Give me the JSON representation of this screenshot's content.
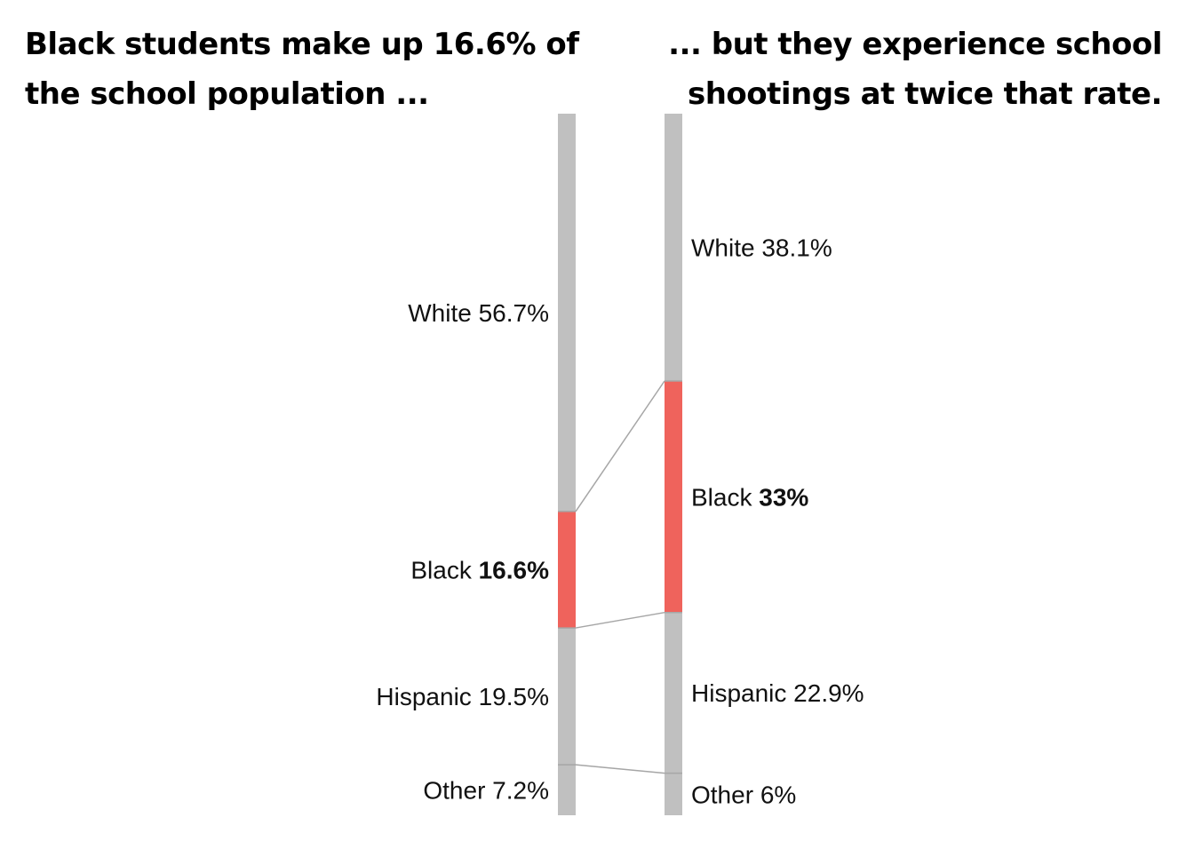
{
  "headline_left": "Black students make up 16.6% of the school population ...",
  "headline_right": "... but they experience school shootings at twice that rate.",
  "colors": {
    "neutral": "#c0c0c0",
    "highlight": "#ef635c",
    "connector": "#a6a6a6",
    "text": "#111111"
  },
  "chart_data": {
    "type": "stacked-bar-comparison",
    "categories": [
      "White",
      "Black",
      "Hispanic",
      "Other"
    ],
    "highlight_category": "Black",
    "bars": [
      {
        "values": [
          56.7,
          16.6,
          19.5,
          7.2
        ],
        "labels": [
          "56.7%",
          "16.6%",
          "19.5%",
          "7.2%"
        ]
      },
      {
        "values": [
          38.1,
          33,
          22.9,
          6
        ],
        "labels": [
          "38.1%",
          "33%",
          "22.9%",
          "6%"
        ]
      }
    ]
  }
}
